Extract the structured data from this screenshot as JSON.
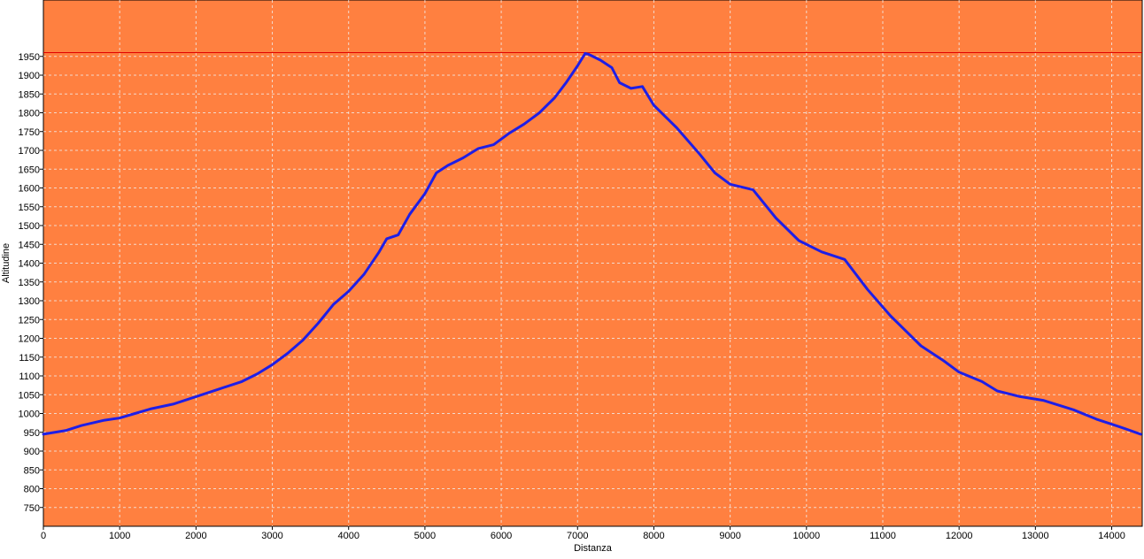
{
  "chart_data": {
    "type": "line",
    "title": "",
    "xlabel": "Distanza",
    "ylabel": "Altitudine",
    "xlim": [
      0,
      14400
    ],
    "ylim": [
      700,
      2100
    ],
    "grid": true,
    "colors": {
      "plot_background": "#FF8040",
      "line": "#1E1EE6",
      "max_line": "#E00000",
      "grid": "#F0F0F0",
      "axis": "#000000"
    },
    "x_ticks": [
      0,
      1000,
      2000,
      3000,
      4000,
      5000,
      6000,
      7000,
      8000,
      9000,
      10000,
      11000,
      12000,
      13000,
      14000
    ],
    "y_ticks": [
      750,
      800,
      850,
      900,
      950,
      1000,
      1050,
      1100,
      1150,
      1200,
      1250,
      1300,
      1350,
      1400,
      1450,
      1500,
      1550,
      1600,
      1650,
      1700,
      1750,
      1800,
      1850,
      1900,
      1950
    ],
    "max_altitude_line": 1960,
    "series": [
      {
        "x": [
          0,
          300,
          500,
          800,
          1000,
          1200,
          1400,
          1700,
          2000,
          2300,
          2600,
          2800,
          3000,
          3200,
          3400,
          3600,
          3800,
          4000,
          4200,
          4400,
          4500,
          4650,
          4800,
          5000,
          5150,
          5300,
          5500,
          5700,
          5900,
          6100,
          6300,
          6500,
          6700,
          6850,
          7000,
          7100,
          7150,
          7300,
          7450,
          7550,
          7700,
          7850,
          8000,
          8300,
          8600,
          8800,
          9000,
          9300,
          9600,
          9900,
          10200,
          10500,
          10800,
          11100,
          11500,
          11800,
          12000,
          12300,
          12500,
          12800,
          13100,
          13500,
          13800,
          14100,
          14380
        ],
        "y": [
          945,
          955,
          968,
          982,
          988,
          1000,
          1012,
          1025,
          1045,
          1065,
          1085,
          1105,
          1130,
          1160,
          1195,
          1240,
          1290,
          1325,
          1370,
          1430,
          1465,
          1475,
          1530,
          1585,
          1640,
          1660,
          1680,
          1705,
          1715,
          1745,
          1770,
          1800,
          1840,
          1880,
          1925,
          1958,
          1955,
          1940,
          1920,
          1880,
          1865,
          1870,
          1820,
          1760,
          1690,
          1640,
          1610,
          1595,
          1520,
          1460,
          1430,
          1410,
          1330,
          1260,
          1180,
          1140,
          1110,
          1085,
          1060,
          1045,
          1035,
          1010,
          985,
          965,
          945
        ]
      }
    ]
  }
}
